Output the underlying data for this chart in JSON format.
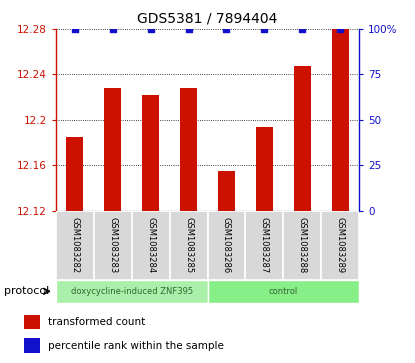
{
  "title": "GDS5381 / 7894404",
  "samples": [
    "GSM1083282",
    "GSM1083283",
    "GSM1083284",
    "GSM1083285",
    "GSM1083286",
    "GSM1083287",
    "GSM1083288",
    "GSM1083289"
  ],
  "red_values": [
    12.185,
    12.228,
    12.222,
    12.228,
    12.155,
    12.194,
    12.247,
    12.28
  ],
  "blue_values": [
    100,
    100,
    100,
    100,
    100,
    100,
    100,
    100
  ],
  "bar_color": "#cc1100",
  "dot_color": "#1111cc",
  "ylim_left": [
    12.12,
    12.28
  ],
  "ylim_right": [
    0,
    100
  ],
  "yticks_left": [
    12.12,
    12.16,
    12.2,
    12.24,
    12.28
  ],
  "yticks_right": [
    0,
    25,
    50,
    75,
    100
  ],
  "ytick_labels_left": [
    "12.12",
    "12.16",
    "12.2",
    "12.24",
    "12.28"
  ],
  "ytick_labels_right": [
    "0",
    "25",
    "50",
    "75",
    "100%"
  ],
  "group1_label": "doxycycline-induced ZNF395",
  "group2_label": "control",
  "protocol_label": "protocol",
  "group1_indices": [
    0,
    1,
    2,
    3
  ],
  "group2_indices": [
    4,
    5,
    6,
    7
  ],
  "group1_color": "#aaf0aa",
  "group2_color": "#88ee88",
  "sample_bg_color": "#d8d8d8",
  "legend_red_label": "transformed count",
  "legend_blue_label": "percentile rank within the sample",
  "bar_width": 0.45,
  "baseline": 12.12
}
